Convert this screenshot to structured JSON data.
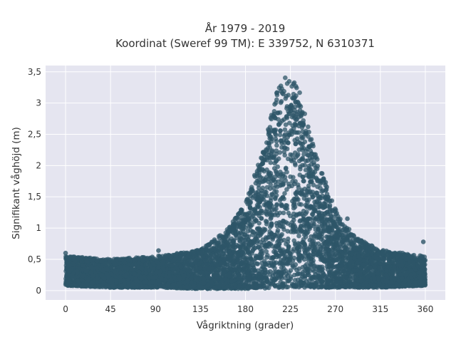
{
  "chart_data": {
    "type": "scatter",
    "title_lines": [
      "År 1979 - 2019",
      "Koordinat (Sweref 99 TM): E 339752, N 6310371"
    ],
    "xlabel": "Vågriktning (grader)",
    "ylabel": "Signifikant våghöjd (m)",
    "xlim": [
      -20,
      380
    ],
    "ylim": [
      -0.15,
      3.6
    ],
    "x_ticks": [
      0,
      45,
      90,
      135,
      180,
      225,
      270,
      315,
      360
    ],
    "x_tick_labels": [
      "0",
      "45",
      "90",
      "135",
      "180",
      "225",
      "270",
      "315",
      "360"
    ],
    "y_ticks": [
      0,
      0.5,
      1,
      1.5,
      2,
      2.5,
      3,
      3.5
    ],
    "y_tick_labels": [
      "0",
      "0,5",
      "1",
      "1,5",
      "2",
      "2,5",
      "3",
      "3,5"
    ],
    "grid": true,
    "marker_color": "#2e5568",
    "background_color": "#e5e5f0",
    "envelope": {
      "x": [
        0,
        45,
        90,
        135,
        160,
        180,
        200,
        215,
        225,
        235,
        250,
        270,
        290,
        315,
        360
      ],
      "y_upper": [
        0.55,
        0.5,
        0.55,
        0.65,
        0.95,
        1.4,
        2.4,
        3.45,
        3.45,
        3.15,
        2.2,
        1.3,
        0.85,
        0.65,
        0.55
      ],
      "y_lower": [
        0.08,
        0.05,
        0.05,
        0.03,
        0.03,
        0.03,
        0.03,
        0.05,
        0.05,
        0.05,
        0.05,
        0.05,
        0.05,
        0.05,
        0.08
      ]
    },
    "notable_points": [
      {
        "x": 0,
        "y": 0.6
      },
      {
        "x": 93,
        "y": 0.64
      },
      {
        "x": 282,
        "y": 1.15
      },
      {
        "x": 358,
        "y": 0.78
      }
    ]
  }
}
